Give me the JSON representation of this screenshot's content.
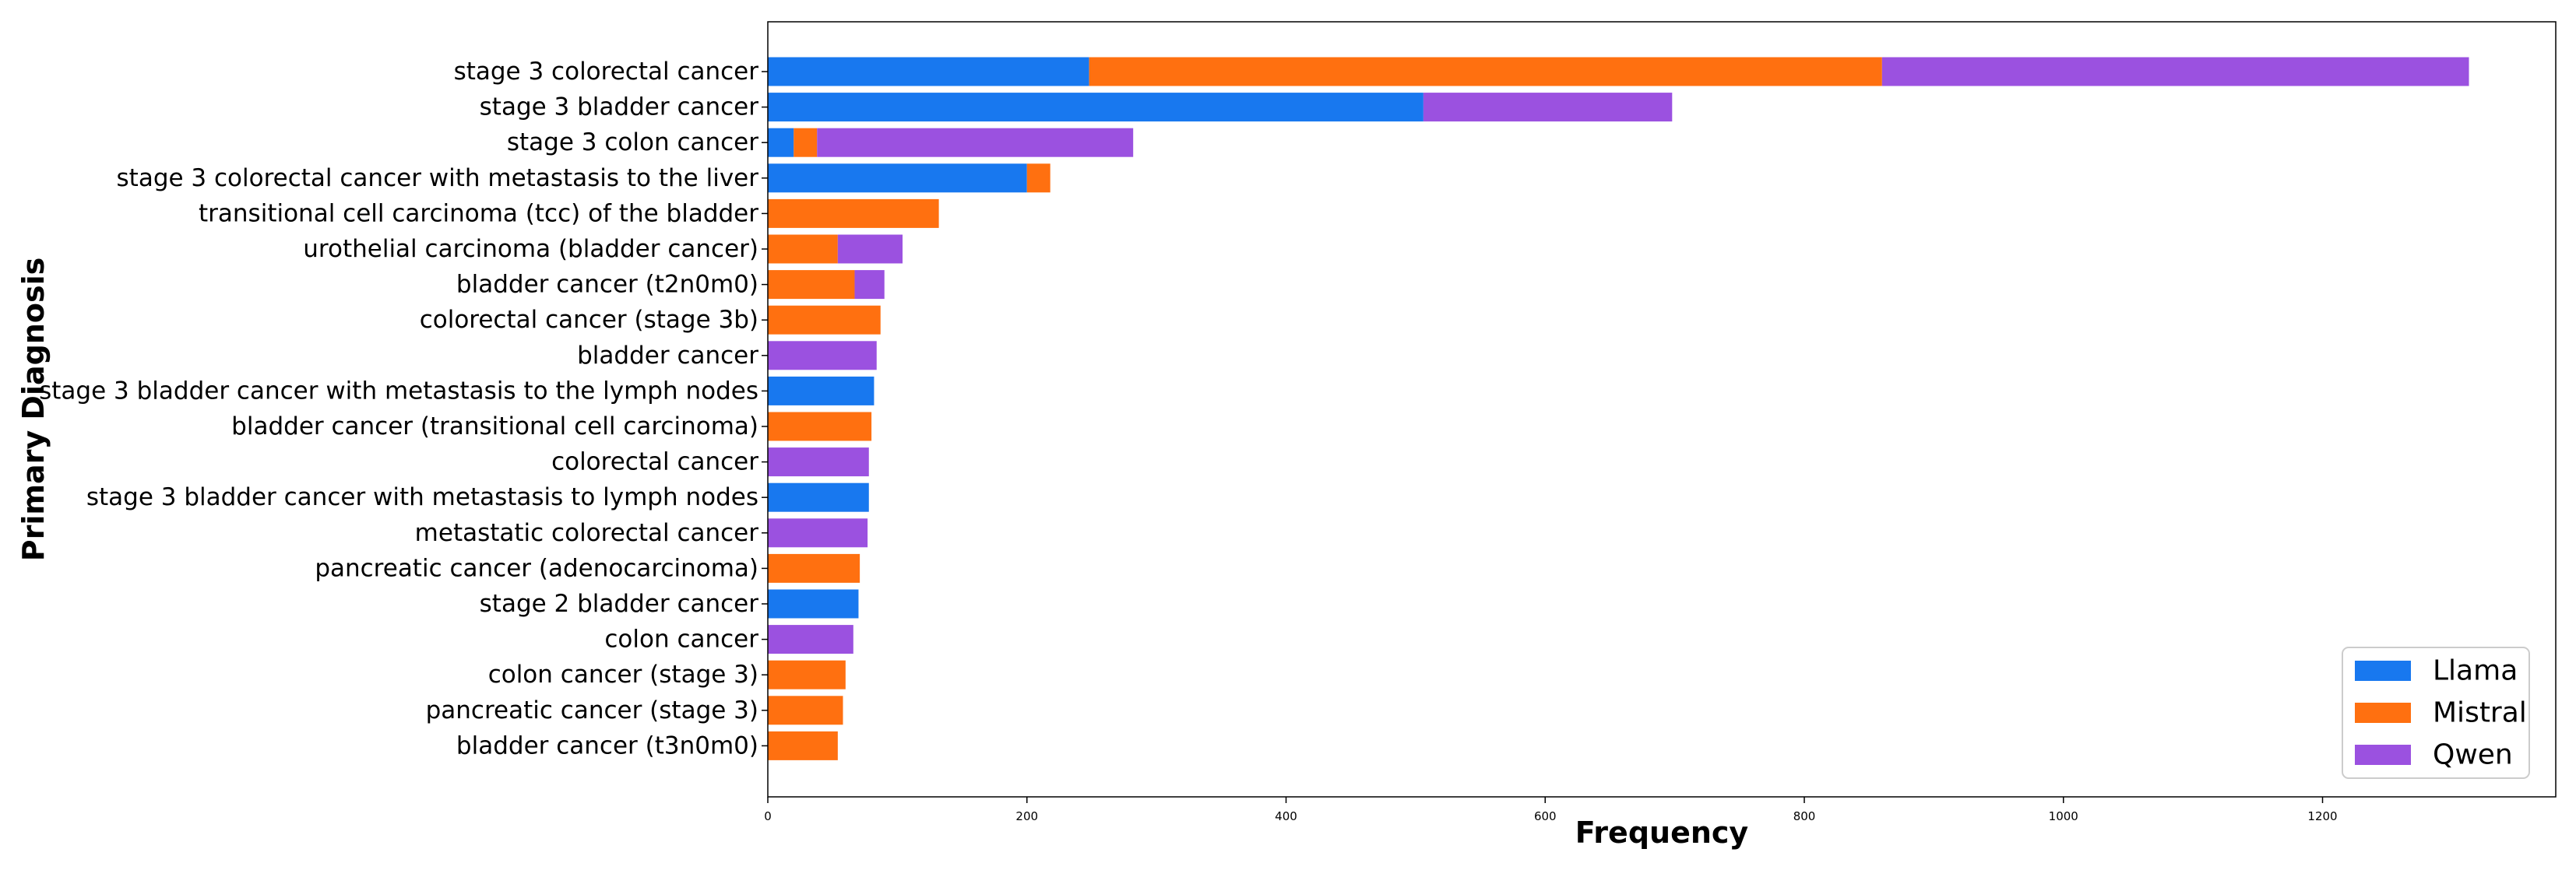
{
  "chart_data": {
    "type": "bar",
    "orientation": "horizontal",
    "stacked": true,
    "xlabel": "Frequency",
    "ylabel": "Primary Diagnosis",
    "xlim": [
      0,
      1380
    ],
    "xticks": [
      0,
      200,
      400,
      600,
      800,
      1000,
      1200
    ],
    "grid": false,
    "legend_position": "bottom-right",
    "categories": [
      "stage 3 colorectal cancer",
      "stage 3 bladder cancer",
      "stage 3 colon cancer",
      "stage 3 colorectal cancer with metastasis to the liver",
      "transitional cell carcinoma (tcc) of the bladder",
      "urothelial carcinoma (bladder cancer)",
      "bladder cancer (t2n0m0)",
      "colorectal cancer (stage 3b)",
      "bladder cancer",
      "stage 3 bladder cancer with metastasis to the lymph nodes",
      "bladder cancer (transitional cell carcinoma)",
      "colorectal cancer",
      "stage 3 bladder cancer with metastasis to lymph nodes",
      "metastatic colorectal cancer",
      "pancreatic cancer (adenocarcinoma)",
      "stage 2 bladder cancer",
      "colon cancer",
      "colon cancer (stage 3)",
      "pancreatic cancer (stage 3)",
      "bladder cancer (t3n0m0)"
    ],
    "series": [
      {
        "name": "Llama",
        "color": "#1878ef",
        "values": [
          248,
          506,
          20,
          200,
          0,
          0,
          0,
          0,
          0,
          82,
          0,
          0,
          78,
          0,
          0,
          70,
          0,
          0,
          0,
          0
        ]
      },
      {
        "name": "Mistral",
        "color": "#ff7010",
        "values": [
          612,
          0,
          18,
          18,
          132,
          54,
          67,
          87,
          0,
          0,
          80,
          0,
          0,
          0,
          71,
          0,
          0,
          60,
          58,
          54
        ]
      },
      {
        "name": "Qwen",
        "color": "#9b51e0",
        "values": [
          453,
          192,
          244,
          0,
          0,
          50,
          23,
          0,
          84,
          0,
          0,
          78,
          0,
          77,
          0,
          0,
          66,
          0,
          0,
          0
        ]
      }
    ]
  }
}
